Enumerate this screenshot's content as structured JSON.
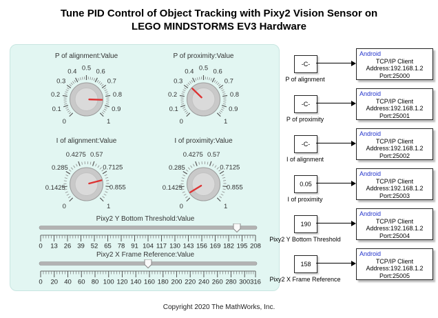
{
  "title": {
    "line1": "Tune PID Control of Object Tracking with Pixy2 Vision Sensor on",
    "line2": "LEGO MINDSTORMS EV3 Hardware"
  },
  "copyright": "Copyright 2020 The MathWorks, Inc.",
  "colors": {
    "panel_bg": "#e2f6f2",
    "needle_red": "#dd3333",
    "android_blue": "#2233cc",
    "track_gray": "#b3b3b3"
  },
  "panel": {
    "knobs": [
      {
        "label": "P of alignment:Value",
        "min": 0,
        "max": 1,
        "value": 0.84,
        "tick_values": [
          0,
          0.1,
          0.2,
          0.3,
          0.4,
          0.5,
          0.6,
          0.7,
          0.8,
          0.9,
          1
        ],
        "tick_labels": [
          "0",
          "0.1",
          "0.2",
          "0.3",
          "0.4",
          "0.5",
          "0.6",
          "0.7",
          "0.8",
          "0.9",
          "1"
        ]
      },
      {
        "label": "P of proximity:Value",
        "min": 0,
        "max": 1,
        "value": 0.33,
        "tick_values": [
          0,
          0.1,
          0.2,
          0.3,
          0.4,
          0.5,
          0.6,
          0.7,
          0.8,
          0.9,
          1
        ],
        "tick_labels": [
          "0",
          "0.1",
          "0.2",
          "0.3",
          "0.4",
          "0.5",
          "0.6",
          "0.7",
          "0.8",
          "0.9",
          "1"
        ]
      },
      {
        "label": "I of alignment:Value",
        "min": 0,
        "max": 1,
        "value": 0.78,
        "tick_values": [
          0,
          0.1425,
          0.285,
          0.4275,
          0.57,
          0.7125,
          0.855,
          1
        ],
        "tick_labels": [
          "0",
          "0.1425",
          "0.285",
          "0.4275",
          "0.57",
          "0.7125",
          "0.855",
          "1"
        ]
      },
      {
        "label": "I of proximity:Value",
        "min": 0,
        "max": 1,
        "value": 0.05,
        "tick_values": [
          0,
          0.1425,
          0.285,
          0.4275,
          0.57,
          0.7125,
          0.855,
          1
        ],
        "tick_labels": [
          "0",
          "0.1425",
          "0.285",
          "0.4275",
          "0.57",
          "0.7125",
          "0.855",
          "1"
        ]
      }
    ],
    "sliders": [
      {
        "label": "Pixy2 Y Bottom Threshold:Value",
        "min": 0,
        "max": 208,
        "value": 190,
        "tick_values": [
          0,
          13,
          26,
          39,
          52,
          65,
          78,
          91,
          104,
          117,
          130,
          143,
          156,
          169,
          182,
          195,
          208
        ],
        "tick_labels": [
          "0",
          "13",
          "26",
          "39",
          "52",
          "65",
          "78",
          "91",
          "104",
          "117",
          "130",
          "143",
          "156",
          "169",
          "182",
          "195",
          "208"
        ]
      },
      {
        "label": "Pixy2 X Frame Reference:Value",
        "min": 0,
        "max": 316,
        "value": 158,
        "tick_values": [
          0,
          20,
          40,
          60,
          80,
          100,
          120,
          140,
          160,
          180,
          200,
          220,
          240,
          260,
          280,
          300,
          316
        ],
        "tick_labels": [
          "0",
          "20",
          "40",
          "60",
          "80",
          "100",
          "120",
          "140",
          "160",
          "180",
          "200",
          "220",
          "240",
          "260",
          "280",
          "300",
          "316"
        ]
      }
    ]
  },
  "io_rows": [
    {
      "value": "-C-",
      "label": "P of alignment",
      "platform": "Android",
      "client": "TCP/IP Client",
      "address": "Address:192.168.1.2",
      "port": "Port:25000"
    },
    {
      "value": "-C-",
      "label": "P of proximity",
      "platform": "Android",
      "client": "TCP/IP Client",
      "address": "Address:192.168.1.2",
      "port": "Port:25001"
    },
    {
      "value": "-C-",
      "label": "I of alignment",
      "platform": "Android",
      "client": "TCP/IP Client",
      "address": "Address:192.168.1.2",
      "port": "Port:25002"
    },
    {
      "value": "0.05",
      "label": "I of proximity",
      "platform": "Android",
      "client": "TCP/IP Client",
      "address": "Address:192.168.1.2",
      "port": "Port:25003"
    },
    {
      "value": "190",
      "label": "Pixy2 Y Bottom Threshold",
      "platform": "Android",
      "client": "TCP/IP Client",
      "address": "Address:192.168.1.2",
      "port": "Port:25004"
    },
    {
      "value": "158",
      "label": "Pixy2 X Frame Reference",
      "platform": "Android",
      "client": "TCP/IP Client",
      "address": "Address:192.168.1.2",
      "port": "Port:25005"
    }
  ]
}
